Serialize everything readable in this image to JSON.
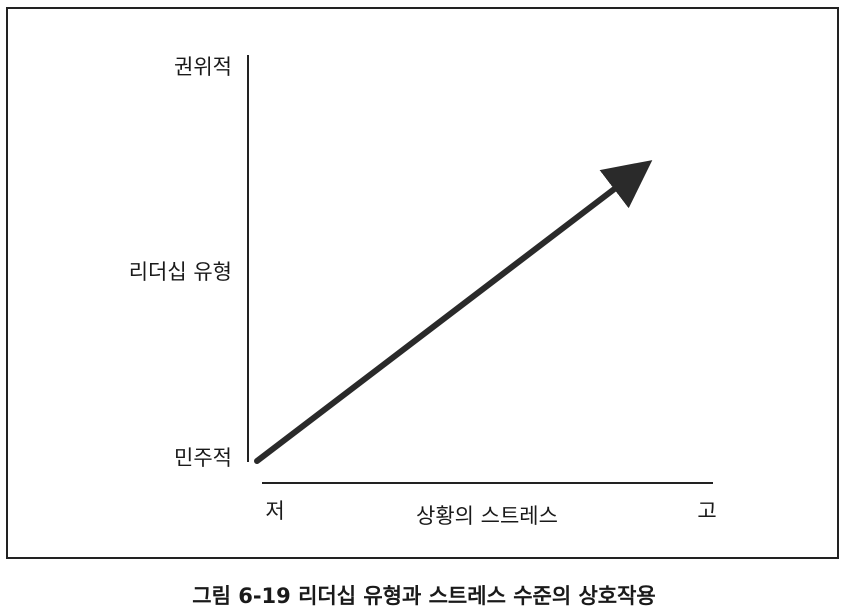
{
  "diagram": {
    "y_axis": {
      "top": "권위적",
      "middle": "리더십 유형",
      "bottom": "민주적"
    },
    "x_axis": {
      "low": "저",
      "title": "상황의 스트레스",
      "high": "고"
    },
    "caption": "그림 6-19 리더십 유형과 스트레스 수준의 상호작용"
  }
}
